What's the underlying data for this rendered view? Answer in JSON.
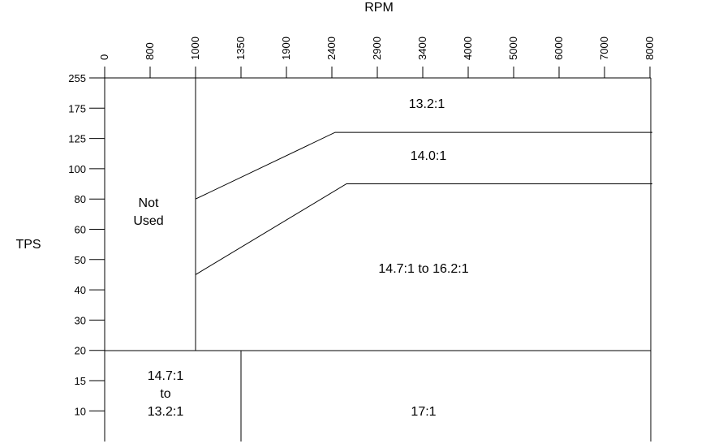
{
  "chart_data": {
    "type": "table",
    "xlabel": "RPM",
    "ylabel": "TPS",
    "x_ticks": [
      "0",
      "800",
      "1000",
      "1350",
      "1900",
      "2400",
      "2900",
      "3400",
      "4000",
      "5000",
      "6000",
      "7000",
      "8000"
    ],
    "y_ticks": [
      "255",
      "175",
      "125",
      "100",
      "80",
      "60",
      "50",
      "40",
      "30",
      "20",
      "15",
      "10"
    ],
    "boundaries": [
      {
        "name": "upper",
        "points": [
          [
            "1000",
            "80"
          ],
          [
            "2400",
            "135"
          ],
          [
            "8000",
            "135"
          ]
        ]
      },
      {
        "name": "lower",
        "points": [
          [
            "1000",
            "45"
          ],
          [
            "2400",
            "90"
          ],
          [
            "8000",
            "90"
          ]
        ]
      }
    ],
    "regions": [
      {
        "id": "not-used",
        "lines": [
          "Not",
          "Used"
        ],
        "rpm": [
          "0",
          "1000"
        ],
        "tps": [
          "20",
          "255"
        ]
      },
      {
        "id": "ratio-13-2",
        "lines": [
          "13.2:1"
        ],
        "rpm": [
          "1000",
          "8000"
        ],
        "tps": [
          "upper",
          "255"
        ]
      },
      {
        "id": "ratio-14-0",
        "lines": [
          "14.0:1"
        ],
        "rpm": [
          "1000",
          "8000"
        ],
        "tps": [
          "lower",
          "upper"
        ]
      },
      {
        "id": "ratio-14-7-16-2",
        "lines": [
          "14.7:1 to 16.2:1"
        ],
        "rpm": [
          "1000",
          "8000"
        ],
        "tps": [
          "20",
          "lower"
        ]
      },
      {
        "id": "ratio-14-7-13-2",
        "lines": [
          "14.7:1",
          "to",
          "13.2:1"
        ],
        "rpm": [
          "0",
          "1350"
        ],
        "tps": [
          "0",
          "20"
        ]
      },
      {
        "id": "ratio-17",
        "lines": [
          "17:1"
        ],
        "rpm": [
          "1350",
          "8000"
        ],
        "tps": [
          "0",
          "20"
        ]
      }
    ]
  }
}
